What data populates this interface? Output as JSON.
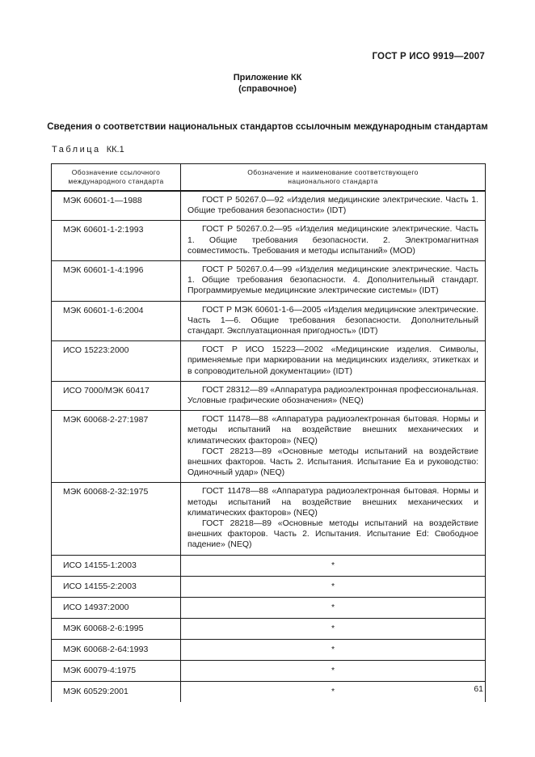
{
  "header": {
    "doc_ref": "ГОСТ Р ИСО 9919—2007"
  },
  "appendix": {
    "title": "Приложение КК",
    "subtitle": "(справочное)"
  },
  "section_title": "Сведения о соответствии национальных стандартов ссылочным международным стандартам",
  "table_caption": {
    "label": "Таблица",
    "number": "КК.1"
  },
  "table": {
    "headers": [
      {
        "line1": "Обозначение ссылочного",
        "line2": "международного стандарта"
      },
      {
        "line1": "Обозначение и наименование соответствующего",
        "line2": "национального стандарта"
      }
    ],
    "rows": [
      {
        "intl": "МЭК 60601-1—1988",
        "national": [
          "ГОСТ Р 50267.0—92 «Изделия медицинские электрические. Часть 1. Общие требования безопасности»  (IDT)"
        ],
        "star": false
      },
      {
        "intl": "МЭК 60601-1-2:1993",
        "national": [
          "ГОСТ Р 50267.0.2—95 «Изделия медицинские электрические. Часть 1. Общие требования безопасности. 2. Электромагнитная совместимость. Требования и методы испытаний»  (MOD)"
        ],
        "star": false
      },
      {
        "intl": "МЭК 60601-1-4:1996",
        "national": [
          "ГОСТ Р 50267.0.4—99 «Изделия медицинские электрические. Часть 1. Общие требования безопасности. 4. Дополнительный стандарт. Программируемые медицинские электрические системы» (IDT)"
        ],
        "star": false
      },
      {
        "intl": "МЭК 60601-1-6:2004",
        "national": [
          "ГОСТ Р МЭК 60601-1-6—2005 «Изделия медицинские электрические. Часть 1—6. Общие требования безопасности. Дополнительный стандарт. Эксплуатационная пригодность» (IDT)"
        ],
        "star": false
      },
      {
        "intl": "ИСО 15223:2000",
        "national": [
          "ГОСТ Р ИСО 15223—2002 «Медицинские изделия. Символы, применяемые при маркировании на медицинских изделиях, этикетках и в сопроводительной документации» (IDT)"
        ],
        "star": false
      },
      {
        "intl": "ИСО 7000/МЭК 60417",
        "national": [
          "ГОСТ 28312—89 «Аппаратура радиоэлектронная профессиональная. Условные графические обозначения»  (NEQ)"
        ],
        "star": false
      },
      {
        "intl": "МЭК 60068-2-27:1987",
        "national": [
          "ГОСТ 11478—88 «Аппаратура радиоэлектронная бытовая. Нормы и методы испытаний на воздействие внешних механических и климатических факторов» (NEQ)",
          "ГОСТ 28213—89 «Основные методы испытаний на воздействие внешних факторов. Часть 2. Испытания. Испытание Ea и руководство: Одиночный удар» (NEQ)"
        ],
        "star": false
      },
      {
        "intl": "МЭК 60068-2-32:1975",
        "national": [
          "ГОСТ 11478—88 «Аппаратура радиоэлектронная бытовая. Нормы и методы испытаний на воздействие внешних механических и климатических факторов» (NEQ)",
          "ГОСТ 28218—89 «Основные методы испытаний на воздействие внешних факторов. Часть 2. Испытания. Испытание Ed: Свободное падение» (NEQ)"
        ],
        "star": false
      },
      {
        "intl": "ИСО 14155-1:2003",
        "national": [
          "*"
        ],
        "star": true
      },
      {
        "intl": "ИСО 14155-2:2003",
        "national": [
          "*"
        ],
        "star": true
      },
      {
        "intl": "ИСО 14937:2000",
        "national": [
          "*"
        ],
        "star": true
      },
      {
        "intl": "МЭК 60068-2-6:1995",
        "national": [
          "*"
        ],
        "star": true
      },
      {
        "intl": "МЭК 60068-2-64:1993",
        "national": [
          "*"
        ],
        "star": true
      },
      {
        "intl": "МЭК 60079-4:1975",
        "national": [
          "*"
        ],
        "star": true
      },
      {
        "intl": "МЭК 60529:2001",
        "national": [
          "*"
        ],
        "star": true
      }
    ]
  },
  "footer": {
    "page_number": "61"
  }
}
